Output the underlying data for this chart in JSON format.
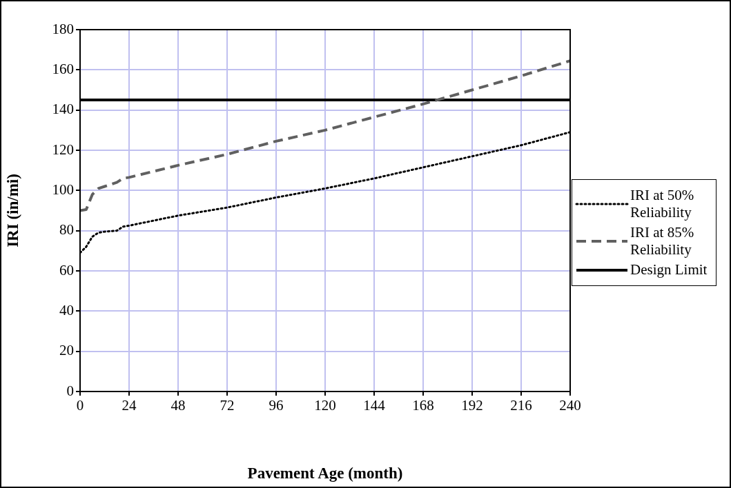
{
  "chart_data": {
    "type": "line",
    "xlabel": "Pavement Age (month)",
    "ylabel": "IRI (in/mi)",
    "xlim": [
      0,
      240
    ],
    "xticks": [
      0,
      24,
      48,
      72,
      96,
      120,
      144,
      168,
      192,
      216,
      240
    ],
    "ylim": [
      0,
      180
    ],
    "yticks": [
      0,
      20,
      40,
      60,
      80,
      100,
      120,
      140,
      160,
      180
    ],
    "grid": true,
    "legend": "right",
    "marker": "none",
    "series": [
      {
        "name": "IRI at 50% Reliability",
        "color": "#000000",
        "line_style": "dotted",
        "x": [
          0,
          3,
          6,
          9,
          12,
          18,
          21,
          24,
          48,
          72,
          96,
          120,
          144,
          168,
          192,
          216,
          240
        ],
        "values": [
          69,
          72,
          77,
          79,
          79.5,
          80,
          82,
          82.5,
          87.5,
          91.5,
          96.5,
          101,
          106,
          111.5,
          117,
          122.5,
          129
        ]
      },
      {
        "name": "IRI at 85% Reliability",
        "color": "#606060",
        "line_style": "dashed",
        "x": [
          0,
          3,
          6,
          9,
          12,
          18,
          21,
          24,
          48,
          72,
          96,
          120,
          144,
          168,
          192,
          216,
          240
        ],
        "values": [
          90,
          90.5,
          98,
          101,
          102,
          104,
          106,
          106.5,
          112.5,
          118,
          124.5,
          130,
          136.5,
          143,
          150,
          157,
          164.5
        ]
      },
      {
        "name": "Design Limit",
        "color": "#000000",
        "line_style": "solid",
        "x": [
          0,
          240
        ],
        "values": [
          145,
          145
        ]
      }
    ]
  }
}
